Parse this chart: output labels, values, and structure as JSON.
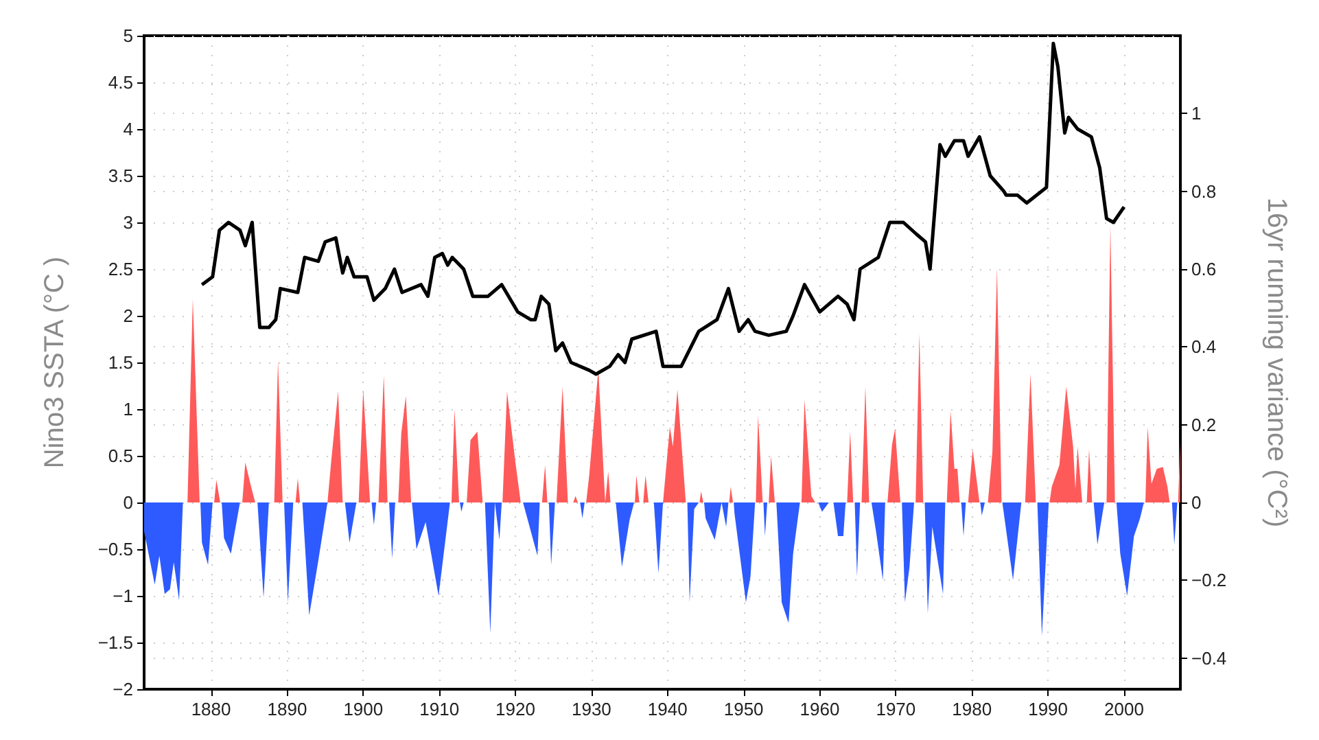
{
  "chart_data": {
    "type": "area",
    "ylabel": "Nino3 SSTA (°C )",
    "y2label": "16yr running variance (°C²)",
    "xlim": [
      1871.2,
      2007.4
    ],
    "xticks": [
      1880,
      1890,
      1900,
      1910,
      1920,
      1930,
      1940,
      1950,
      1960,
      1970,
      1980,
      1990,
      2000
    ],
    "ylim": [
      -2,
      5
    ],
    "yticks": [
      -2,
      -1.5,
      -1,
      -0.5,
      0,
      0.5,
      1,
      1.5,
      2,
      2.5,
      3,
      3.5,
      4,
      4.5,
      5
    ],
    "y2lim": [
      -0.48,
      1.2
    ],
    "y2ticks": [
      -0.4,
      -0.2,
      0,
      0.2,
      0.4,
      0.6,
      0.8,
      1
    ],
    "grid": true,
    "series": [
      {
        "color": "#ff5a5a",
        "x": [
          1876.9,
          1877.6,
          1878.5,
          1880.4,
          1880.7,
          1881.2,
          1884.1,
          1884.5,
          1885.2,
          1885.8,
          1888.3,
          1888.8,
          1889.4,
          1891.1,
          1891.4,
          1891.7,
          1895.3,
          1895.8,
          1896.7,
          1897.3,
          1899.4,
          1900.0,
          1900.9,
          1902.0,
          1902.7,
          1903.2,
          1904.6,
          1905.0,
          1905.6,
          1906.3,
          1911.6,
          1912.0,
          1912.6,
          1913.6,
          1914.1,
          1915.0,
          1915.7,
          1918.3,
          1918.9,
          1920.0,
          1920.7,
          1923.5,
          1923.9,
          1924.2,
          1925.4,
          1926.2,
          1926.9,
          1927.6,
          1927.9,
          1928.2,
          1929.3,
          1929.7,
          1930.9,
          1931.8,
          1932.2,
          1932.5,
          1935.7,
          1935.9,
          1936.3,
          1936.8,
          1937.1,
          1937.5,
          1939.4,
          1940.3,
          1940.7,
          1941.3,
          1942.4,
          1944.2,
          1944.4,
          1944.7,
          1948.1,
          1948.3,
          1948.6,
          1951.6,
          1951.9,
          1952.5,
          1953.3,
          1953.6,
          1954.1,
          1957.6,
          1958.0,
          1958.9,
          1959.4,
          1963.6,
          1964.0,
          1964.4,
          1965.5,
          1966.0,
          1966.5,
          1968.9,
          1969.5,
          1969.9,
          1970.6,
          1972.6,
          1973.1,
          1973.6,
          1976.7,
          1977.2,
          1977.7,
          1978.1,
          1978.4,
          1979.5,
          1980.1,
          1981.0,
          1982.1,
          1982.7,
          1983.3,
          1983.9,
          1987.0,
          1987.7,
          1988.4,
          1990.2,
          1990.5,
          1991.5,
          1992.4,
          1993.3,
          1993.6,
          1993.9,
          1994.5,
          1995.1,
          1995.4,
          1995.8,
          1997.7,
          1998.2,
          1998.8,
          2002.8,
          2003.1,
          2003.6,
          2004.3,
          2005.1,
          2005.7,
          2006.0,
          2007.1,
          2007.4
        ],
        "values": [
          0,
          2.18,
          0,
          0,
          0.24,
          0,
          0,
          0.43,
          0.19,
          0,
          0,
          1.52,
          0,
          0,
          0.26,
          0,
          0,
          0.45,
          1.19,
          0,
          0,
          1.21,
          0,
          0,
          1.36,
          0,
          0,
          0.74,
          1.14,
          0,
          0,
          1.0,
          0,
          0,
          0.67,
          0.76,
          0,
          0,
          1.19,
          0.43,
          0,
          0,
          0.4,
          0,
          0,
          1.24,
          0,
          0,
          0.07,
          0,
          0,
          0.29,
          1.43,
          0,
          0.33,
          0,
          0,
          0.29,
          0,
          0,
          0.29,
          0,
          0,
          0.81,
          0.6,
          1.21,
          0,
          0,
          0.12,
          0,
          0,
          0.17,
          0,
          0,
          0.93,
          0,
          0,
          0.5,
          0,
          0,
          1.1,
          0.07,
          0,
          0,
          0.76,
          0,
          0,
          1.24,
          0,
          0,
          0.62,
          0.79,
          0,
          0,
          1.81,
          0,
          0,
          0.98,
          0.36,
          0.36,
          0,
          0,
          0.57,
          0,
          0,
          0.55,
          2.51,
          0,
          0,
          1.38,
          0,
          0,
          0.17,
          0.4,
          1.24,
          0.6,
          0.14,
          0.6,
          0,
          0,
          0.57,
          0,
          0,
          2.97,
          0,
          0,
          0.81,
          0.2,
          0.36,
          0.38,
          0.17,
          0,
          0,
          0.67
        ]
      },
      {
        "color": "#2d5bff",
        "x": [
          1871.2,
          1872.6,
          1873.2,
          1873.9,
          1874.6,
          1875.1,
          1875.8,
          1876.3,
          1878.6,
          1878.8,
          1879.6,
          1880.2,
          1881.4,
          1881.7,
          1882.6,
          1883.8,
          1886.1,
          1886.9,
          1887.6,
          1889.6,
          1890.1,
          1890.8,
          1892.0,
          1892.9,
          1894.1,
          1895.3,
          1897.6,
          1898.2,
          1899.1,
          1901.1,
          1901.4,
          1901.7,
          1903.4,
          1903.8,
          1904.2,
          1906.4,
          1907.0,
          1908.2,
          1909.9,
          1911.4,
          1912.7,
          1912.9,
          1913.2,
          1916.0,
          1916.7,
          1917.3,
          1917.9,
          1918.2,
          1921.0,
          1922.1,
          1922.9,
          1923.2,
          1924.4,
          1924.7,
          1925.2,
          1928.5,
          1928.8,
          1929.1,
          1933.2,
          1934.0,
          1935.0,
          1935.6,
          1938.2,
          1938.8,
          1939.4,
          1942.6,
          1942.9,
          1943.5,
          1944.1,
          1944.8,
          1945.0,
          1946.2,
          1947.1,
          1947.7,
          1948.0,
          1948.7,
          1948.8,
          1950.3,
          1950.9,
          1951.5,
          1952.6,
          1952.8,
          1953.1,
          1954.3,
          1955.0,
          1955.9,
          1956.5,
          1957.4,
          1959.8,
          1960.3,
          1961.2,
          1961.8,
          1962.4,
          1963.1,
          1963.4,
          1964.6,
          1964.9,
          1965.3,
          1966.8,
          1967.4,
          1968.3,
          1968.6,
          1970.8,
          1971.2,
          1971.8,
          1972.4,
          1973.8,
          1974.2,
          1974.8,
          1976.2,
          1976.5,
          1978.6,
          1978.9,
          1979.2,
          1981.1,
          1981.3,
          1981.7,
          1984.0,
          1985.4,
          1986.5,
          1988.6,
          1989.2,
          1990.1,
          1996.0,
          1996.5,
          1997.4,
          1999.0,
          1999.5,
          2000.4,
          2001.3,
          2002.1,
          2002.6,
          2006.3,
          2006.6,
          2007.0
        ],
        "values": [
          -0.31,
          -0.88,
          -0.57,
          -0.98,
          -0.93,
          -0.64,
          -1.05,
          0,
          0,
          -0.43,
          -0.67,
          0,
          0,
          -0.38,
          -0.55,
          0,
          0,
          -1.02,
          0,
          0,
          -1.07,
          0,
          0,
          -1.21,
          -0.62,
          0,
          0,
          -0.43,
          0,
          0,
          -0.24,
          0,
          0,
          -0.6,
          0,
          0,
          -0.5,
          -0.21,
          -1.0,
          0,
          0,
          -0.1,
          0,
          0,
          -1.4,
          0,
          -0.4,
          0,
          0,
          -0.33,
          -0.57,
          0,
          0,
          -0.67,
          0,
          0,
          -0.17,
          0,
          0,
          -0.69,
          -0.19,
          0,
          0,
          -0.76,
          0,
          0,
          -1.07,
          -0.07,
          0,
          0,
          -0.17,
          -0.4,
          0,
          -0.26,
          0,
          0,
          -0.12,
          -1.07,
          -0.79,
          0,
          0,
          -0.36,
          0,
          0,
          -1.07,
          -1.29,
          -0.55,
          0,
          0,
          -0.1,
          0,
          0,
          -0.36,
          -0.36,
          0,
          0,
          -0.79,
          0,
          0,
          -0.31,
          -0.83,
          0,
          0,
          -1.07,
          -0.69,
          0,
          0,
          -1.19,
          -0.26,
          -0.98,
          0,
          0,
          -0.36,
          0,
          0,
          -0.14,
          0,
          0,
          -0.83,
          0,
          0,
          -1.43,
          0,
          0,
          -0.45,
          0,
          0,
          -0.55,
          -1.0,
          -0.36,
          -0.17,
          0,
          0,
          -0.45,
          0
        ]
      },
      {
        "type": "line",
        "axis": "y2",
        "color": "#000000",
        "x": [
          1878.8,
          1880.2,
          1881.1,
          1882.3,
          1883.8,
          1884.5,
          1885.4,
          1886.4,
          1887.6,
          1888.5,
          1889.1,
          1891.4,
          1892.3,
          1894.1,
          1895.0,
          1896.4,
          1897.3,
          1897.9,
          1898.8,
          1900.5,
          1901.4,
          1902.9,
          1904.1,
          1905.1,
          1907.6,
          1908.5,
          1909.4,
          1910.4,
          1911.1,
          1911.7,
          1913.2,
          1914.4,
          1916.4,
          1918.2,
          1918.8,
          1920.3,
          1922.0,
          1922.6,
          1923.4,
          1924.4,
          1925.3,
          1926.2,
          1927.3,
          1929.7,
          1930.6,
          1932.4,
          1933.5,
          1934.4,
          1935.3,
          1938.5,
          1939.4,
          1941.8,
          1944.1,
          1946.5,
          1948.0,
          1949.4,
          1950.6,
          1951.5,
          1953.3,
          1955.6,
          1956.5,
          1958.0,
          1960.0,
          1962.4,
          1963.6,
          1964.5,
          1965.3,
          1967.7,
          1969.2,
          1971.0,
          1972.7,
          1973.9,
          1974.5,
          1975.8,
          1976.5,
          1977.7,
          1978.9,
          1979.5,
          1981.0,
          1982.4,
          1984.2,
          1984.5,
          1986.0,
          1987.2,
          1989.8,
          1990.7,
          1991.3,
          1992.2,
          1992.7,
          1993.9,
          1995.7,
          1996.8,
          1997.7,
          1998.6,
          2000.0
        ],
        "values": [
          0.56,
          0.58,
          0.7,
          0.72,
          0.7,
          0.66,
          0.72,
          0.45,
          0.45,
          0.47,
          0.55,
          0.54,
          0.63,
          0.62,
          0.67,
          0.68,
          0.59,
          0.63,
          0.58,
          0.58,
          0.52,
          0.55,
          0.6,
          0.54,
          0.56,
          0.53,
          0.63,
          0.64,
          0.61,
          0.63,
          0.6,
          0.53,
          0.53,
          0.56,
          0.54,
          0.49,
          0.47,
          0.47,
          0.53,
          0.51,
          0.39,
          0.41,
          0.36,
          0.34,
          0.33,
          0.35,
          0.38,
          0.36,
          0.42,
          0.44,
          0.35,
          0.35,
          0.44,
          0.47,
          0.55,
          0.44,
          0.47,
          0.44,
          0.43,
          0.44,
          0.48,
          0.56,
          0.49,
          0.53,
          0.51,
          0.47,
          0.6,
          0.63,
          0.72,
          0.72,
          0.69,
          0.67,
          0.6,
          0.92,
          0.89,
          0.93,
          0.93,
          0.89,
          0.94,
          0.84,
          0.8,
          0.79,
          0.79,
          0.77,
          0.81,
          1.18,
          1.12,
          0.95,
          0.99,
          0.96,
          0.94,
          0.86,
          0.73,
          0.72,
          0.76
        ]
      }
    ]
  }
}
